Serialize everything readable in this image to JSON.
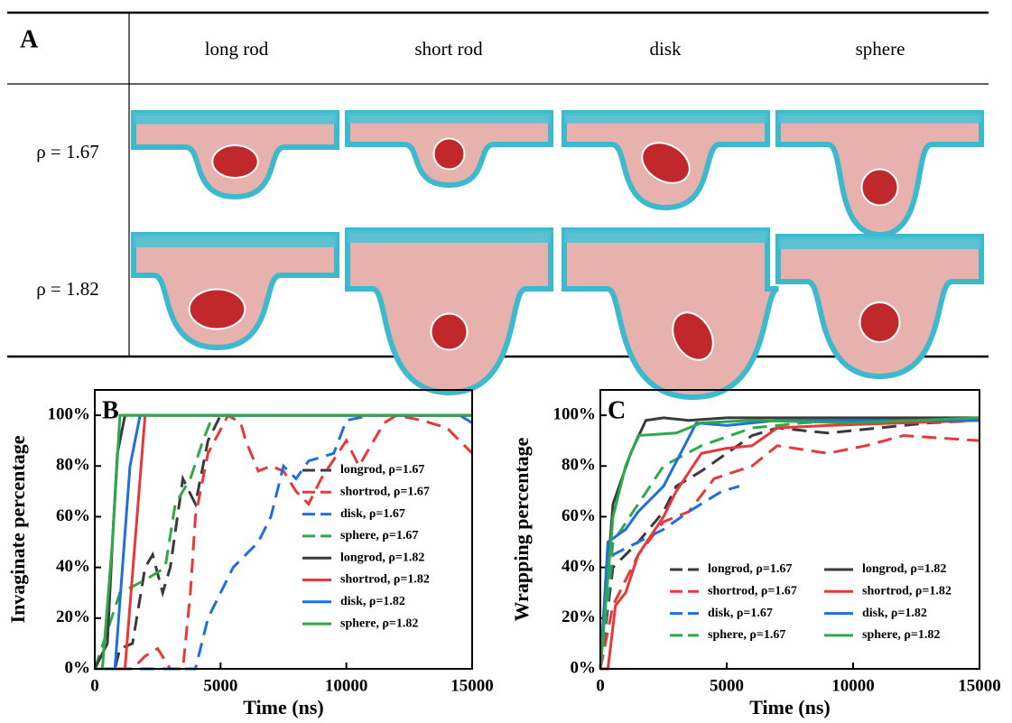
{
  "panel_a": {
    "label": "A",
    "columns": [
      "long rod",
      "short rod",
      "disk",
      "sphere"
    ],
    "rows": [
      "ρ = 1.67",
      "ρ = 1.82"
    ]
  },
  "chart_data": [
    {
      "type": "line",
      "panel_label": "B",
      "xlabel": "Time (ns)",
      "ylabel": "Invaginate percentage",
      "xlim": [
        0,
        15000
      ],
      "ylim": [
        0,
        110
      ],
      "xticks": [
        0,
        5000,
        10000,
        15000
      ],
      "yticks": [
        {
          "value": 0,
          "label": "0%"
        },
        {
          "value": 20,
          "label": "20%"
        },
        {
          "value": 40,
          "label": "40%"
        },
        {
          "value": 60,
          "label": "60%"
        },
        {
          "value": 80,
          "label": "80%"
        },
        {
          "value": 100,
          "label": "100%"
        }
      ],
      "legend": "lower right",
      "series": [
        {
          "name": "longrod, ρ=1.67",
          "color": "#3a3a3a",
          "dashed": true,
          "x": [
            0,
            800,
            1000,
            1500,
            2000,
            2300,
            2700,
            3000,
            3500,
            4000,
            4500,
            5000,
            15000
          ],
          "values": [
            0,
            0,
            8,
            10,
            40,
            45,
            30,
            40,
            75,
            65,
            90,
            100,
            100
          ]
        },
        {
          "name": "shortrod, ρ=1.67",
          "color": "#e8393a",
          "dashed": true,
          "x": [
            0,
            1500,
            2000,
            2500,
            3000,
            3500,
            3800,
            4000,
            4500,
            5300,
            5800,
            6000,
            6500,
            7000,
            7500,
            8000,
            8500,
            9000,
            10000,
            10500,
            11500,
            12000,
            13000,
            14000,
            15000
          ],
          "values": [
            0,
            0,
            5,
            8,
            0,
            0,
            30,
            60,
            85,
            100,
            97,
            90,
            78,
            80,
            78,
            70,
            65,
            75,
            90,
            80,
            97,
            100,
            98,
            95,
            85
          ]
        },
        {
          "name": "disk, ρ=1.67",
          "color": "#1f6fe0",
          "dashed": true,
          "x": [
            0,
            4000,
            4500,
            5500,
            6500,
            7000,
            7500,
            8000,
            8500,
            9500,
            10000,
            11000,
            14500,
            15000
          ],
          "values": [
            0,
            0,
            20,
            40,
            50,
            60,
            80,
            75,
            82,
            85,
            98,
            100,
            100,
            97
          ]
        },
        {
          "name": "sphere, ρ=1.67",
          "color": "#2ea84a",
          "dashed": true,
          "x": [
            0,
            1000,
            2000,
            2800,
            3200,
            3800,
            4300,
            4700,
            15000
          ],
          "values": [
            0,
            30,
            35,
            40,
            65,
            75,
            90,
            100,
            100
          ]
        },
        {
          "name": "longrod, ρ=1.82",
          "color": "#3a3a3a",
          "dashed": false,
          "x": [
            0,
            500,
            700,
            900,
            1200,
            15000
          ],
          "values": [
            0,
            10,
            50,
            85,
            100,
            100
          ]
        },
        {
          "name": "shortrod, ρ=1.82",
          "color": "#e8393a",
          "dashed": false,
          "x": [
            0,
            1200,
            1600,
            2000,
            15000
          ],
          "values": [
            0,
            0,
            50,
            100,
            100
          ]
        },
        {
          "name": "disk, ρ=1.82",
          "color": "#1f6fe0",
          "dashed": false,
          "x": [
            0,
            800,
            1100,
            1400,
            1800,
            15000
          ],
          "values": [
            0,
            0,
            40,
            80,
            100,
            100
          ]
        },
        {
          "name": "sphere, ρ=1.82",
          "color": "#2ea84a",
          "dashed": false,
          "x": [
            0,
            300,
            700,
            1000,
            15000
          ],
          "values": [
            0,
            0,
            50,
            100,
            100
          ]
        }
      ]
    },
    {
      "type": "line",
      "panel_label": "C",
      "xlabel": "Time (ns)",
      "ylabel": "Wrapping percentage",
      "xlim": [
        0,
        15000
      ],
      "ylim": [
        0,
        110
      ],
      "xticks": [
        0,
        5000,
        10000,
        15000
      ],
      "yticks": [
        {
          "value": 0,
          "label": "0%"
        },
        {
          "value": 20,
          "label": "20%"
        },
        {
          "value": 40,
          "label": "40%"
        },
        {
          "value": 60,
          "label": "60%"
        },
        {
          "value": 80,
          "label": "80%"
        },
        {
          "value": 100,
          "label": "100%"
        }
      ],
      "legend": "lower right",
      "series": [
        {
          "name": "longrod, ρ=1.67",
          "color": "#3a3a3a",
          "dashed": true,
          "x": [
            0,
            500,
            1500,
            2500,
            3000,
            4000,
            5000,
            6000,
            7000,
            9000,
            11000,
            13000,
            15000
          ],
          "values": [
            0,
            40,
            50,
            62,
            72,
            78,
            85,
            92,
            95,
            93,
            95,
            97,
            98
          ]
        },
        {
          "name": "shortrod, ρ=1.67",
          "color": "#e8393a",
          "dashed": true,
          "x": [
            0,
            500,
            1500,
            2500,
            3500,
            4500,
            6000,
            7000,
            9000,
            10500,
            12000,
            15000
          ],
          "values": [
            0,
            25,
            45,
            58,
            62,
            75,
            80,
            88,
            85,
            88,
            92,
            90
          ]
        },
        {
          "name": "disk, ρ=1.67",
          "color": "#1f6fe0",
          "dashed": true,
          "x": [
            0,
            500,
            1500,
            2500,
            3500,
            4800,
            5500
          ],
          "values": [
            0,
            45,
            50,
            55,
            62,
            70,
            72
          ]
        },
        {
          "name": "sphere, ρ=1.67",
          "color": "#2ea84a",
          "dashed": true,
          "x": [
            0,
            500,
            1500,
            2500,
            4000,
            6000,
            8000,
            10000,
            15000
          ],
          "values": [
            0,
            50,
            65,
            80,
            88,
            95,
            97,
            98,
            99
          ]
        },
        {
          "name": "longrod, ρ=1.82",
          "color": "#3a3a3a",
          "dashed": false,
          "x": [
            0,
            500,
            1200,
            1800,
            2500,
            3500,
            5000,
            15000
          ],
          "values": [
            0,
            65,
            85,
            98,
            99,
            98,
            99,
            99
          ]
        },
        {
          "name": "shortrod, ρ=1.82",
          "color": "#e8393a",
          "dashed": false,
          "x": [
            0,
            300,
            600,
            1000,
            1500,
            2500,
            3000,
            4000,
            5000,
            6000,
            7000,
            9000,
            12000,
            15000
          ],
          "values": [
            0,
            0,
            25,
            30,
            45,
            60,
            70,
            85,
            87,
            88,
            95,
            96,
            97,
            98
          ]
        },
        {
          "name": "disk, ρ=1.82",
          "color": "#1f6fe0",
          "dashed": false,
          "x": [
            0,
            300,
            1000,
            1500,
            2500,
            3800,
            5000,
            7000,
            15000
          ],
          "values": [
            0,
            50,
            55,
            62,
            72,
            97,
            96,
            98,
            98
          ]
        },
        {
          "name": "sphere, ρ=1.82",
          "color": "#2ea84a",
          "dashed": false,
          "x": [
            0,
            500,
            1000,
            1500,
            3000,
            4000,
            6000,
            10000,
            15000
          ],
          "values": [
            0,
            60,
            80,
            92,
            93,
            97,
            98,
            97,
            99
          ]
        }
      ]
    }
  ]
}
